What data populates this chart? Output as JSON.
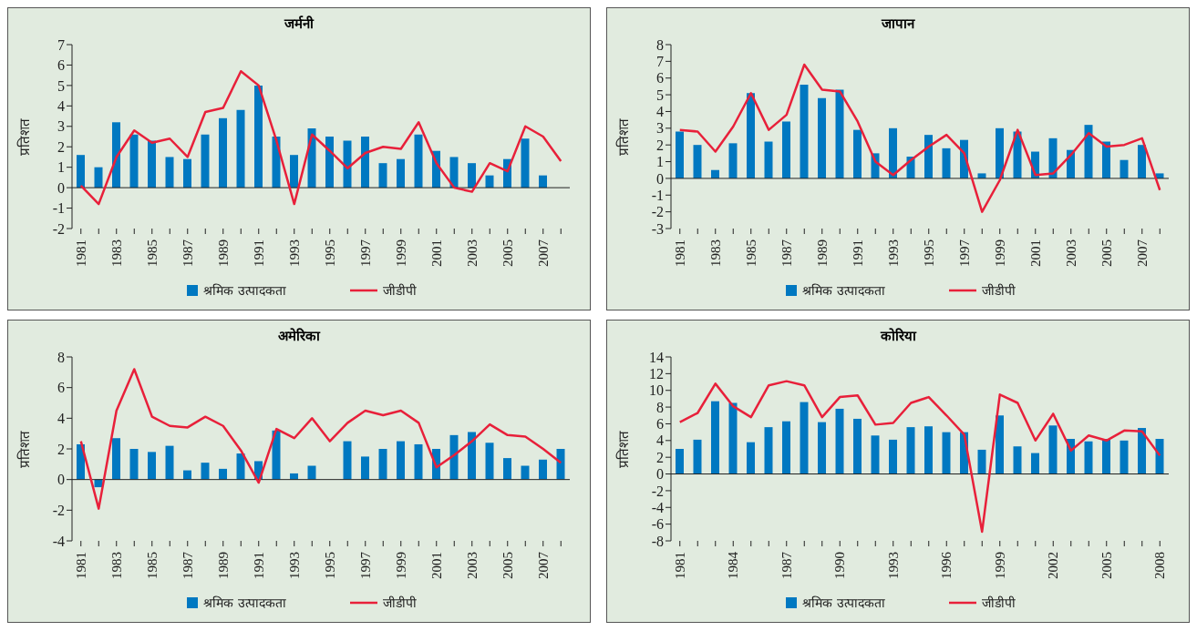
{
  "chart_data": [
    {
      "type": "bar",
      "title": "जर्मनी",
      "ylabel": "प्रतिशत",
      "categories": [
        "1981",
        null,
        "1983",
        null,
        "1985",
        null,
        "1987",
        null,
        "1989",
        null,
        "1991",
        null,
        "1993",
        null,
        "1995",
        null,
        "1997",
        null,
        "1999",
        null,
        "2001",
        null,
        "2003",
        null,
        "2005",
        null,
        "2007",
        null
      ],
      "series": [
        {
          "name": "श्रमिक उत्पादकता",
          "type": "bar",
          "color": "#0078c1",
          "values": [
            1.6,
            1.0,
            3.2,
            2.6,
            2.3,
            1.5,
            1.4,
            2.6,
            3.4,
            3.8,
            5.0,
            2.5,
            1.6,
            2.9,
            2.5,
            2.3,
            2.5,
            1.2,
            1.4,
            2.6,
            1.8,
            1.5,
            1.2,
            0.6,
            1.4,
            2.4,
            0.6,
            null
          ]
        },
        {
          "name": "जीडीपी",
          "type": "line",
          "color": "#e8203a",
          "values": [
            0.1,
            -0.8,
            1.5,
            2.8,
            2.2,
            2.4,
            1.5,
            3.7,
            3.9,
            5.7,
            5.0,
            2.3,
            -0.8,
            2.6,
            1.8,
            0.95,
            1.7,
            2.0,
            1.9,
            3.2,
            1.2,
            0.0,
            -0.2,
            1.2,
            0.8,
            3.0,
            2.5,
            1.3
          ]
        }
      ],
      "ylim": [
        -2,
        7
      ],
      "yticks": [
        -2,
        -1,
        0,
        1,
        2,
        3,
        4,
        5,
        6,
        7
      ],
      "ref_lines": [
        {
          "axis": "y",
          "value": 0,
          "color": "#222222"
        }
      ],
      "legend": "bottom",
      "grid": false,
      "marker": "none"
    },
    {
      "type": "bar",
      "title": "जापान",
      "ylabel": "प्रतिशत",
      "categories": [
        "1981",
        null,
        "1983",
        null,
        "1985",
        null,
        "1987",
        null,
        "1989",
        null,
        "1991",
        null,
        "1993",
        null,
        "1995",
        null,
        "1997",
        null,
        "1999",
        null,
        "2001",
        null,
        "2003",
        null,
        "2005",
        null,
        "2007",
        null
      ],
      "series": [
        {
          "name": "श्रमिक उत्पादकता",
          "type": "bar",
          "color": "#0078c1",
          "values": [
            2.8,
            2.0,
            0.5,
            2.1,
            5.1,
            2.2,
            3.4,
            5.6,
            4.8,
            5.3,
            2.9,
            1.5,
            3.0,
            1.3,
            2.6,
            1.8,
            2.3,
            0.3,
            3.0,
            2.8,
            1.6,
            2.4,
            1.7,
            3.2,
            2.2,
            1.1,
            2.0,
            0.3
          ]
        },
        {
          "name": "जीडीपी",
          "type": "line",
          "color": "#e8203a",
          "values": [
            2.9,
            2.8,
            1.6,
            3.1,
            5.1,
            2.9,
            3.8,
            6.8,
            5.3,
            5.2,
            3.4,
            1.0,
            0.2,
            1.1,
            1.9,
            2.6,
            1.5,
            -2.0,
            -0.1,
            2.9,
            0.2,
            0.3,
            1.4,
            2.7,
            1.9,
            2.0,
            2.4,
            -0.7
          ]
        }
      ],
      "ylim": [
        -3,
        8
      ],
      "yticks": [
        -3,
        -2,
        -1,
        0,
        1,
        2,
        3,
        4,
        5,
        6,
        7,
        8
      ],
      "ref_lines": [
        {
          "axis": "y",
          "value": 0,
          "color": "#222222"
        }
      ],
      "legend": "bottom",
      "grid": false,
      "marker": "none"
    },
    {
      "type": "bar",
      "title": "अमेरिका",
      "ylabel": "प्रतिशत",
      "categories": [
        "1981",
        null,
        "1983",
        null,
        "1985",
        null,
        "1987",
        null,
        "1989",
        null,
        "1991",
        null,
        "1993",
        null,
        "1995",
        null,
        "1997",
        null,
        "1999",
        null,
        "2001",
        null,
        "2003",
        null,
        "2005",
        null,
        "2007",
        null
      ],
      "series": [
        {
          "name": "श्रमिक उत्पादकता",
          "type": "bar",
          "color": "#0078c1",
          "values": [
            2.3,
            -0.5,
            2.7,
            2.0,
            1.8,
            2.2,
            0.6,
            1.1,
            0.7,
            1.7,
            1.2,
            3.2,
            0.4,
            0.9,
            null,
            2.5,
            1.5,
            2.0,
            2.5,
            2.3,
            2.0,
            2.9,
            3.1,
            2.4,
            1.4,
            0.9,
            1.3,
            2.0
          ]
        },
        {
          "name": "जीडीपी",
          "type": "line",
          "color": "#e8203a",
          "values": [
            2.5,
            -1.9,
            4.5,
            7.2,
            4.1,
            3.5,
            3.4,
            4.1,
            3.5,
            1.9,
            -0.2,
            3.3,
            2.7,
            4.0,
            2.5,
            3.7,
            4.5,
            4.2,
            4.5,
            3.7,
            0.8,
            1.6,
            2.5,
            3.6,
            2.9,
            2.8,
            2.0,
            1.1
          ]
        }
      ],
      "ylim": [
        -4,
        8
      ],
      "yticks": [
        -4,
        -2,
        0,
        2,
        4,
        6,
        8
      ],
      "ref_lines": [
        {
          "axis": "y",
          "value": 0,
          "color": "#222222"
        }
      ],
      "legend": "bottom",
      "grid": false,
      "marker": "none"
    },
    {
      "type": "bar",
      "title": "कोरिया",
      "ylabel": "प्रतिशत",
      "categories": [
        "1981",
        null,
        null,
        "1984",
        null,
        null,
        "1987",
        null,
        null,
        "1990",
        null,
        null,
        "1993",
        null,
        null,
        "1996",
        null,
        null,
        "1999",
        null,
        null,
        "2002",
        null,
        null,
        "2005",
        null,
        null,
        "2008"
      ],
      "series": [
        {
          "name": "श्रमिक उत्पादकता",
          "type": "bar",
          "color": "#0078c1",
          "values": [
            3.0,
            4.1,
            8.7,
            8.5,
            3.8,
            5.6,
            6.3,
            8.6,
            6.2,
            7.8,
            6.6,
            4.6,
            4.1,
            5.6,
            5.7,
            5.0,
            5.0,
            2.9,
            7.0,
            3.3,
            2.5,
            5.8,
            4.2,
            3.9,
            4.2,
            4.0,
            5.5,
            4.2
          ]
        },
        {
          "name": "जीडीपी",
          "type": "line",
          "color": "#e8203a",
          "values": [
            6.2,
            7.3,
            10.8,
            8.1,
            6.8,
            10.6,
            11.1,
            10.6,
            6.8,
            9.2,
            9.4,
            5.9,
            6.1,
            8.5,
            9.2,
            7.0,
            4.7,
            -6.9,
            9.5,
            8.5,
            4.0,
            7.2,
            2.8,
            4.6,
            4.0,
            5.2,
            5.1,
            2.2
          ]
        }
      ],
      "ylim": [
        -8,
        14
      ],
      "yticks": [
        -8,
        -6,
        -4,
        -2,
        0,
        2,
        4,
        6,
        8,
        10,
        12,
        14
      ],
      "ref_lines": [
        {
          "axis": "y",
          "value": 0,
          "color": "#222222"
        }
      ],
      "legend": "bottom",
      "grid": false,
      "marker": "none"
    }
  ]
}
